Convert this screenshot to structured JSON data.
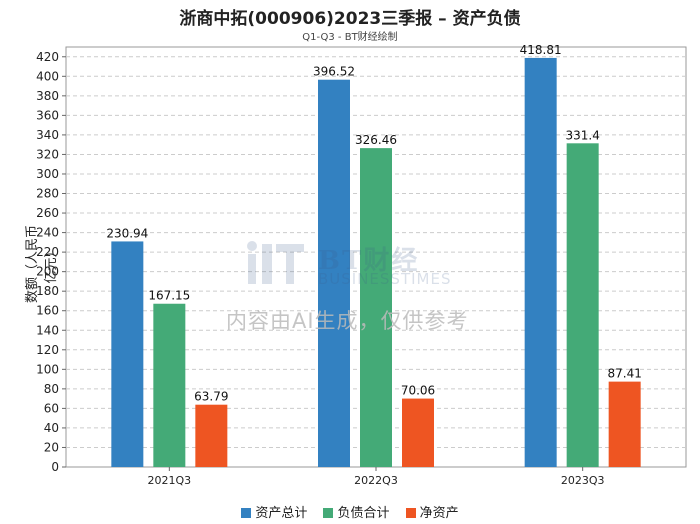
{
  "chart_data": {
    "type": "bar",
    "title": "浙商中拓(000906)2023三季报 – 资产负债",
    "subtitle": "Q1-Q3 - BT财经绘制",
    "ylabel": "数额（人民币亿元）",
    "xlabel": "",
    "categories": [
      "2021Q3",
      "2022Q3",
      "2023Q3"
    ],
    "ylim": [
      0,
      430
    ],
    "yticks": [
      0,
      20,
      40,
      60,
      80,
      100,
      120,
      140,
      160,
      180,
      200,
      220,
      240,
      260,
      280,
      300,
      320,
      340,
      360,
      380,
      400,
      420
    ],
    "series": [
      {
        "name": "资产总计",
        "color": "#3381c1",
        "values": [
          230.94,
          396.52,
          418.81
        ],
        "labels": [
          "230.94",
          "396.52",
          "418.81"
        ]
      },
      {
        "name": "负债合计",
        "color": "#44aa77",
        "values": [
          167.15,
          326.46,
          331.4
        ],
        "labels": [
          "167.15",
          "326.46",
          "331.4"
        ]
      },
      {
        "name": "净资产",
        "color": "#ee5522",
        "values": [
          63.79,
          70.06,
          87.41
        ],
        "labels": [
          "63.79",
          "70.06",
          "87.41"
        ]
      }
    ],
    "grid": true,
    "legend_position": "bottom"
  },
  "watermark": {
    "brand": "BT财经",
    "brand_sub": "BUSINESSTIMES",
    "notice": "内容由AI生成，仅供参考"
  }
}
